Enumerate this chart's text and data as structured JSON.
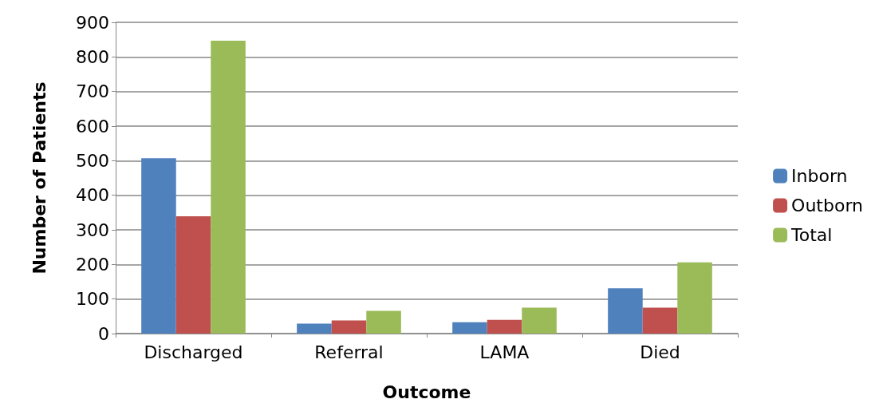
{
  "chart_data": {
    "type": "bar",
    "xlabel": "Outcome",
    "ylabel": "Number of Patients",
    "categories": [
      "Discharged",
      "Referral",
      "LAMA",
      "Died"
    ],
    "series": [
      {
        "name": "Inborn",
        "color": "#4f81bd",
        "values": [
          507,
          29,
          33,
          131
        ]
      },
      {
        "name": "Outborn",
        "color": "#c0504d",
        "values": [
          339,
          38,
          40,
          75
        ]
      },
      {
        "name": "Total",
        "color": "#9bbb59",
        "values": [
          847,
          66,
          75,
          206
        ]
      }
    ],
    "ylim": [
      0,
      900
    ],
    "yticks": [
      0,
      100,
      200,
      300,
      400,
      500,
      600,
      700,
      800,
      900
    ],
    "grid": "y",
    "legend": "right"
  }
}
